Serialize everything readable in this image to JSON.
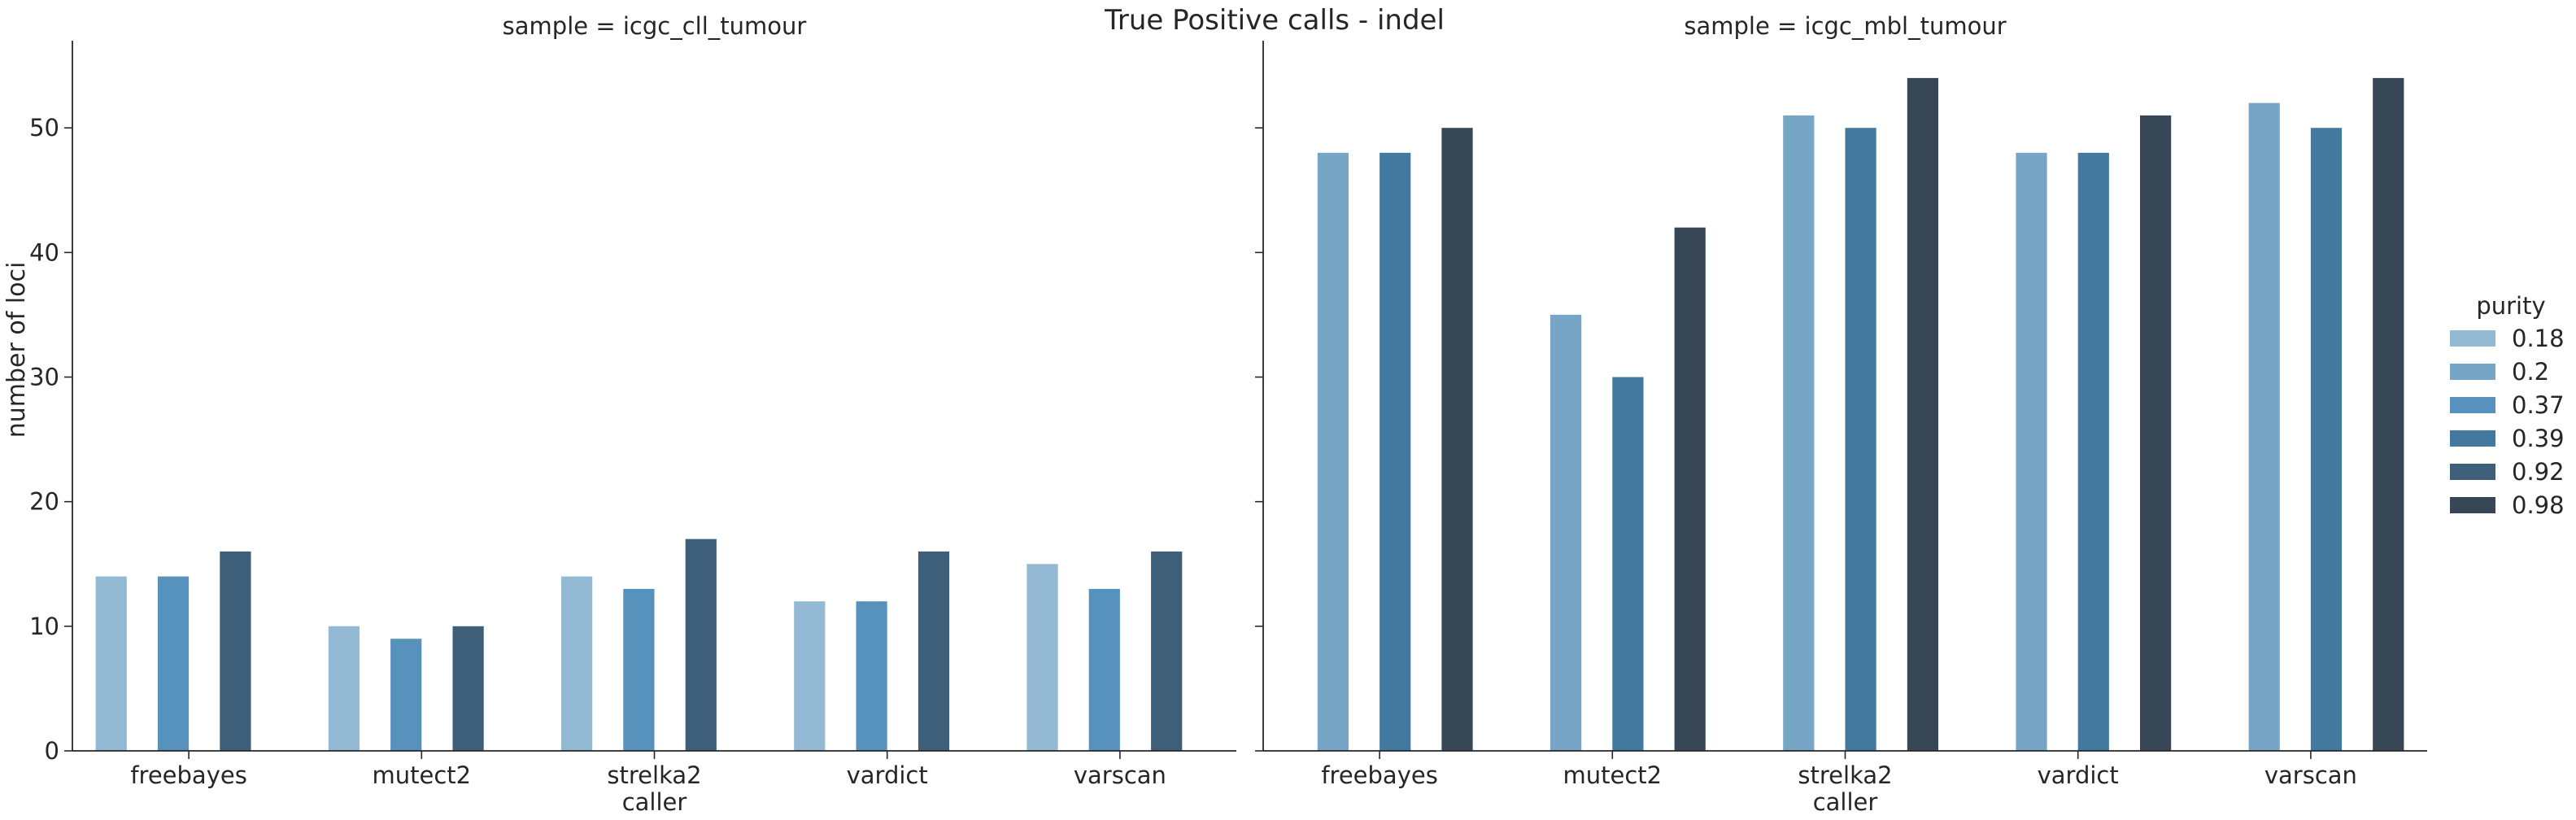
{
  "title": "True Positive calls - indel",
  "ylabel": "number of loci",
  "legend": {
    "title": "purity",
    "placement": "right",
    "entries": [
      {
        "label": "0.18",
        "color": "#93b9d4"
      },
      {
        "label": "0.2",
        "color": "#76a5c6"
      },
      {
        "label": "0.37",
        "color": "#5792bd"
      },
      {
        "label": "0.39",
        "color": "#44799f"
      },
      {
        "label": "0.92",
        "color": "#3e5f7a"
      },
      {
        "label": "0.98",
        "color": "#374756"
      }
    ]
  },
  "chart_data": [
    {
      "type": "bar",
      "title": "sample = icgc_cll_tumour",
      "xlabel": "caller",
      "ylabel": "number of loci",
      "ylim": [
        0,
        57
      ],
      "yticks": [
        0,
        10,
        20,
        30,
        40,
        50
      ],
      "categories": [
        "freebayes",
        "mutect2",
        "strelka2",
        "vardict",
        "varscan"
      ],
      "series": [
        {
          "name": "0.18",
          "color": "#93b9d4",
          "values": [
            14,
            10,
            14,
            12,
            15
          ]
        },
        {
          "name": "0.2",
          "color": "#76a5c6",
          "values": [
            null,
            null,
            null,
            null,
            null
          ]
        },
        {
          "name": "0.37",
          "color": "#5792bd",
          "values": [
            14,
            9,
            13,
            12,
            13
          ]
        },
        {
          "name": "0.39",
          "color": "#44799f",
          "values": [
            null,
            null,
            null,
            null,
            null
          ]
        },
        {
          "name": "0.92",
          "color": "#3e5f7a",
          "values": [
            16,
            10,
            17,
            16,
            16
          ]
        },
        {
          "name": "0.98",
          "color": "#374756",
          "values": [
            null,
            null,
            null,
            null,
            null
          ]
        }
      ]
    },
    {
      "type": "bar",
      "title": "sample = icgc_mbl_tumour",
      "xlabel": "caller",
      "ylabel": "",
      "ylim": [
        0,
        57
      ],
      "yticks": [
        0,
        10,
        20,
        30,
        40,
        50
      ],
      "categories": [
        "freebayes",
        "mutect2",
        "strelka2",
        "vardict",
        "varscan"
      ],
      "series": [
        {
          "name": "0.18",
          "color": "#93b9d4",
          "values": [
            null,
            null,
            null,
            null,
            null
          ]
        },
        {
          "name": "0.2",
          "color": "#76a5c6",
          "values": [
            48,
            35,
            51,
            48,
            52
          ]
        },
        {
          "name": "0.37",
          "color": "#5792bd",
          "values": [
            null,
            null,
            null,
            null,
            null
          ]
        },
        {
          "name": "0.39",
          "color": "#44799f",
          "values": [
            48,
            30,
            50,
            48,
            50
          ]
        },
        {
          "name": "0.92",
          "color": "#3e5f7a",
          "values": [
            null,
            null,
            null,
            null,
            null
          ]
        },
        {
          "name": "0.98",
          "color": "#374756",
          "values": [
            50,
            42,
            54,
            51,
            54
          ]
        }
      ]
    }
  ]
}
